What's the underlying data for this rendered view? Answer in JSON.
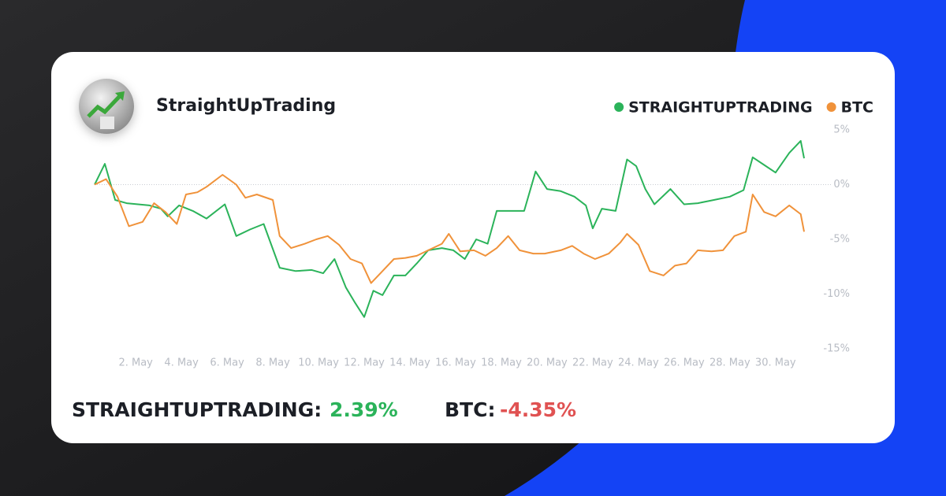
{
  "profile": {
    "name": "StraightUpTrading"
  },
  "summary": [
    {
      "label": "STRAIGHTUPTRADING:",
      "value": "2.39%"
    },
    {
      "label": "BTC:",
      "value": "-4.35%"
    }
  ],
  "chart_data": {
    "type": "line",
    "xlim": [
      0.2,
      31.25
    ],
    "xticks": [
      {
        "value": 2,
        "label": "2. May"
      },
      {
        "value": 4,
        "label": "4. May"
      },
      {
        "value": 6,
        "label": "6. May"
      },
      {
        "value": 8,
        "label": "8. May"
      },
      {
        "value": 10,
        "label": "10. May"
      },
      {
        "value": 12,
        "label": "12. May"
      },
      {
        "value": 14,
        "label": "14. May"
      },
      {
        "value": 16,
        "label": "16. May"
      },
      {
        "value": 18,
        "label": "18. May"
      },
      {
        "value": 20,
        "label": "20. May"
      },
      {
        "value": 22,
        "label": "22. May"
      },
      {
        "value": 24,
        "label": "24. May"
      },
      {
        "value": 26,
        "label": "26. May"
      },
      {
        "value": 28,
        "label": "28. May"
      },
      {
        "value": 30,
        "label": "30. May"
      }
    ],
    "ylim": [
      -15,
      5
    ],
    "yticks": [
      {
        "value": 5,
        "label": "5%"
      },
      {
        "value": 0,
        "label": "0%"
      },
      {
        "value": -5,
        "label": "-5%"
      },
      {
        "value": -10,
        "label": "-10%"
      },
      {
        "value": -15,
        "label": "-15%"
      }
    ],
    "legend": "top-right",
    "series": [
      {
        "name": "STRAIGHTUPTRADING",
        "color": "#2bb35a",
        "x": [
          0.2,
          0.65,
          1.1,
          1.6,
          2.1,
          2.6,
          3.1,
          3.4,
          3.9,
          4.5,
          5.1,
          5.9,
          6.4,
          7.0,
          7.6,
          8.3,
          9.0,
          9.7,
          10.2,
          10.7,
          11.2,
          11.6,
          12.0,
          12.4,
          12.8,
          13.3,
          13.8,
          14.3,
          14.8,
          15.4,
          15.9,
          16.4,
          16.9,
          17.4,
          17.8,
          18.4,
          19.0,
          19.5,
          20.0,
          20.6,
          21.2,
          21.7,
          22.0,
          22.4,
          23.0,
          23.5,
          23.9,
          24.3,
          24.7,
          25.4,
          26.0,
          26.6,
          27.3,
          28.0,
          28.6,
          29.0,
          29.5,
          30.0,
          30.6,
          31.1,
          31.25
        ],
        "values": [
          0,
          1.9,
          -1.4,
          -1.7,
          -1.8,
          -1.9,
          -2.2,
          -2.9,
          -1.9,
          -2.4,
          -3.1,
          -1.8,
          -4.7,
          -4.1,
          -3.6,
          -7.6,
          -7.9,
          -7.8,
          -8.1,
          -6.8,
          -9.4,
          -10.8,
          -12.1,
          -9.7,
          -10.1,
          -8.3,
          -8.3,
          -7.2,
          -6.0,
          -5.8,
          -6.0,
          -6.8,
          -5.0,
          -5.4,
          -2.4,
          -2.4,
          -2.4,
          1.2,
          -0.4,
          -0.6,
          -1.1,
          -1.9,
          -4.0,
          -2.2,
          -2.4,
          2.3,
          1.7,
          -0.4,
          -1.8,
          -0.4,
          -1.8,
          -1.7,
          -1.4,
          -1.1,
          -0.5,
          2.5,
          1.8,
          1.1,
          2.9,
          4.0,
          2.4
        ]
      },
      {
        "name": "BTC",
        "color": "#f0923a",
        "x": [
          0.2,
          0.7,
          1.2,
          1.7,
          2.3,
          2.8,
          3.3,
          3.8,
          4.2,
          4.7,
          5.1,
          5.8,
          6.4,
          6.8,
          7.3,
          8.0,
          8.3,
          8.8,
          9.4,
          9.9,
          10.4,
          10.9,
          11.4,
          11.9,
          12.3,
          12.8,
          13.3,
          13.8,
          14.3,
          14.8,
          15.4,
          15.7,
          16.2,
          16.8,
          17.3,
          17.8,
          18.3,
          18.8,
          19.4,
          19.9,
          20.6,
          21.1,
          21.6,
          22.1,
          22.7,
          23.2,
          23.5,
          24.0,
          24.5,
          25.1,
          25.6,
          26.1,
          26.6,
          27.2,
          27.7,
          28.2,
          28.7,
          29.0,
          29.5,
          30.0,
          30.6,
          31.1,
          31.25
        ],
        "values": [
          0,
          0.5,
          -1.1,
          -3.8,
          -3.4,
          -1.7,
          -2.5,
          -3.6,
          -0.9,
          -0.7,
          -0.2,
          0.9,
          0,
          -1.2,
          -0.9,
          -1.4,
          -4.7,
          -5.8,
          -5.4,
          -5.0,
          -4.7,
          -5.5,
          -6.8,
          -7.2,
          -9.0,
          -7.9,
          -6.8,
          -6.7,
          -6.5,
          -6.0,
          -5.4,
          -4.5,
          -6.1,
          -6.0,
          -6.5,
          -5.8,
          -4.7,
          -6.0,
          -6.3,
          -6.3,
          -6.0,
          -5.6,
          -6.3,
          -6.8,
          -6.3,
          -5.3,
          -4.5,
          -5.5,
          -7.9,
          -8.3,
          -7.4,
          -7.2,
          -6.0,
          -6.1,
          -6.0,
          -4.7,
          -4.3,
          -0.9,
          -2.5,
          -2.9,
          -1.9,
          -2.7,
          -4.3
        ]
      }
    ]
  }
}
